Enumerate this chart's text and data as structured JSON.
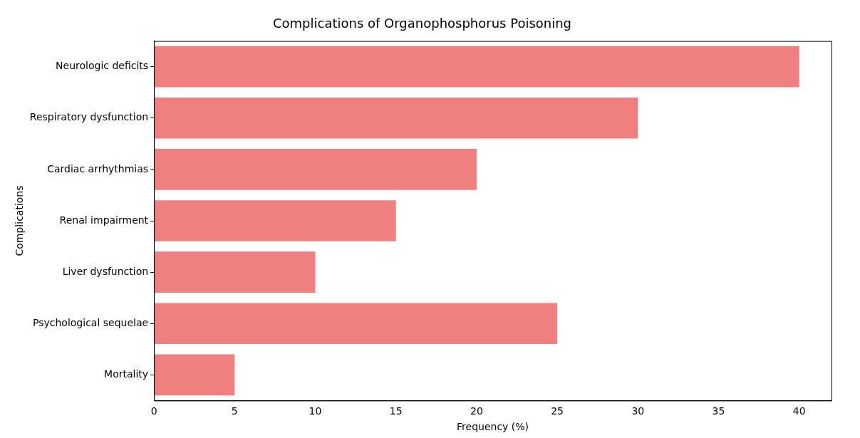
{
  "chart_data": {
    "type": "bar",
    "orientation": "horizontal",
    "title": "Complications of Organophosphorus Poisoning",
    "xlabel": "Frequency (%)",
    "ylabel": "Complications",
    "categories": [
      "Neurologic deficits",
      "Respiratory dysfunction",
      "Cardiac arrhythmias",
      "Renal impairment",
      "Liver dysfunction",
      "Psychological sequelae",
      "Mortality"
    ],
    "values": [
      40,
      30,
      20,
      15,
      10,
      25,
      5
    ],
    "color": "#f08080",
    "xlim": [
      0,
      42
    ],
    "xticks": [
      0,
      5,
      10,
      15,
      20,
      25,
      30,
      35,
      40
    ],
    "grid": false,
    "legend": false
  }
}
